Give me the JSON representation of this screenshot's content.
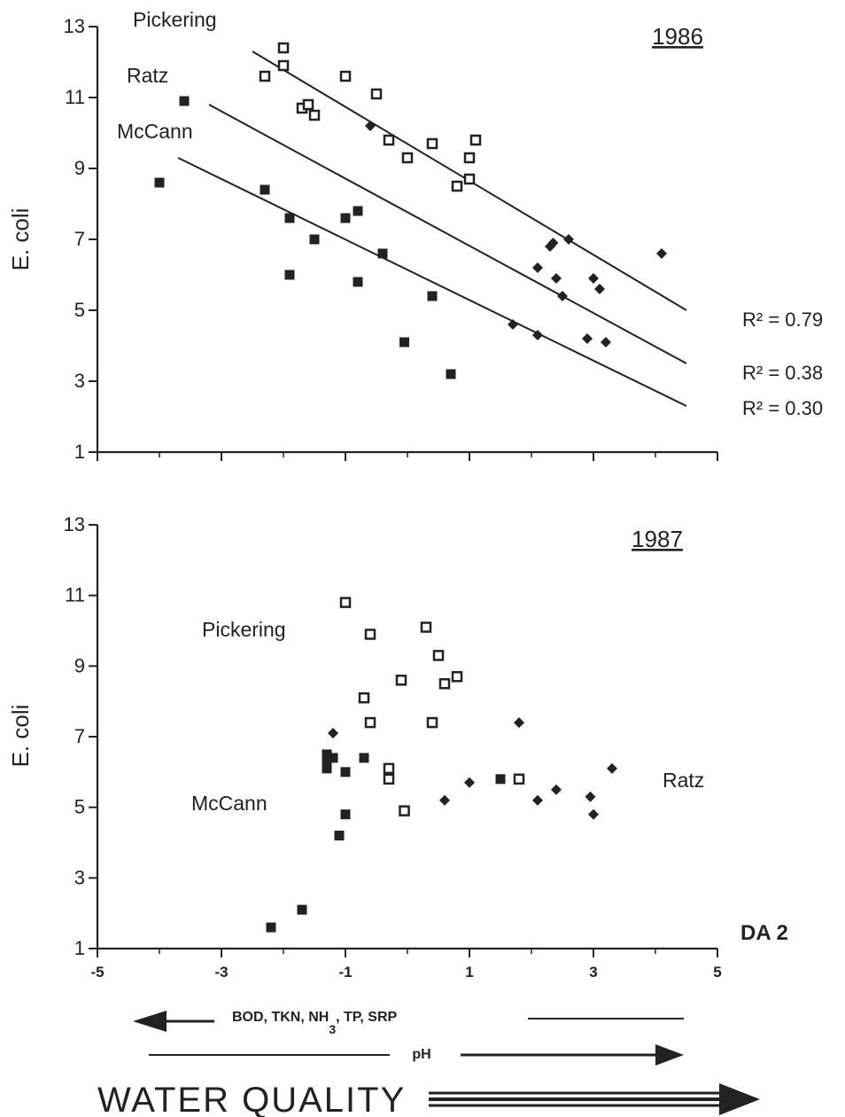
{
  "chart_data": [
    {
      "type": "scatter",
      "year_label": "1986",
      "ylabel": "E. coli",
      "xlim": [
        -5,
        5
      ],
      "ylim": [
        1,
        13
      ],
      "x_ticks": [
        -5,
        -3,
        -1,
        1,
        3,
        5
      ],
      "y_ticks": [
        1,
        3,
        5,
        7,
        9,
        11,
        13
      ],
      "series": [
        {
          "name": "Pickering",
          "marker": "open-square",
          "points": [
            [
              -2.0,
              12.4
            ],
            [
              -2.0,
              11.9
            ],
            [
              -2.3,
              11.6
            ],
            [
              -1.7,
              10.7
            ],
            [
              -1.6,
              10.8
            ],
            [
              -1.5,
              10.5
            ],
            [
              -1.0,
              11.6
            ],
            [
              -0.5,
              11.1
            ],
            [
              -0.3,
              9.8
            ],
            [
              0.0,
              9.3
            ],
            [
              0.4,
              9.7
            ],
            [
              1.0,
              9.3
            ],
            [
              1.0,
              8.7
            ],
            [
              0.8,
              8.5
            ],
            [
              1.1,
              9.8
            ]
          ],
          "fit": {
            "x": [
              -2.5,
              4.5
            ],
            "y": [
              12.3,
              5.0
            ],
            "r2_label": "R² = 0.79"
          }
        },
        {
          "name": "Ratz",
          "marker": "diamond",
          "points": [
            [
              -0.6,
              10.2
            ],
            [
              2.1,
              6.2
            ],
            [
              2.3,
              6.8
            ],
            [
              2.35,
              6.9
            ],
            [
              2.4,
              5.9
            ],
            [
              2.5,
              5.4
            ],
            [
              2.6,
              7.0
            ],
            [
              3.0,
              5.9
            ],
            [
              3.1,
              5.6
            ],
            [
              2.9,
              4.2
            ],
            [
              3.2,
              4.1
            ],
            [
              1.7,
              4.6
            ],
            [
              2.1,
              4.3
            ],
            [
              4.1,
              6.6
            ]
          ],
          "fit": {
            "x": [
              -3.2,
              4.5
            ],
            "y": [
              10.8,
              3.5
            ],
            "r2_label": "R² = 0.38"
          }
        },
        {
          "name": "McCann",
          "marker": "filled-square",
          "points": [
            [
              -4.0,
              8.6
            ],
            [
              -3.6,
              10.9
            ],
            [
              -2.3,
              8.4
            ],
            [
              -1.9,
              7.6
            ],
            [
              -1.9,
              6.0
            ],
            [
              -1.5,
              7.0
            ],
            [
              -1.0,
              7.6
            ],
            [
              -0.8,
              7.8
            ],
            [
              -0.8,
              5.8
            ],
            [
              -0.4,
              6.6
            ],
            [
              -0.05,
              4.1
            ],
            [
              0.4,
              5.4
            ],
            [
              0.7,
              3.2
            ]
          ],
          "fit": {
            "x": [
              -3.7,
              4.5
            ],
            "y": [
              9.3,
              2.3
            ],
            "r2_label": "R² = 0.30"
          }
        }
      ]
    },
    {
      "type": "scatter",
      "year_label": "1987",
      "ylabel": "E. coli",
      "xlabel": "DA 2",
      "xlim": [
        -5,
        5
      ],
      "ylim": [
        1,
        13
      ],
      "x_ticks": [
        -5,
        -3,
        -1,
        1,
        3,
        5
      ],
      "y_ticks": [
        1,
        3,
        5,
        7,
        9,
        11,
        13
      ],
      "series": [
        {
          "name": "Pickering",
          "marker": "open-square",
          "points": [
            [
              -1.0,
              10.8
            ],
            [
              -0.6,
              9.9
            ],
            [
              0.3,
              10.1
            ],
            [
              0.5,
              9.3
            ],
            [
              0.6,
              8.5
            ],
            [
              0.8,
              8.7
            ],
            [
              -0.1,
              8.6
            ],
            [
              -0.7,
              8.1
            ],
            [
              -0.6,
              7.4
            ],
            [
              0.4,
              7.4
            ],
            [
              -0.3,
              6.1
            ],
            [
              -0.3,
              5.8
            ],
            [
              -0.05,
              4.9
            ],
            [
              1.8,
              5.8
            ]
          ]
        },
        {
          "name": "Ratz",
          "marker": "diamond",
          "points": [
            [
              -1.2,
              7.1
            ],
            [
              1.8,
              7.4
            ],
            [
              0.6,
              5.2
            ],
            [
              1.0,
              5.7
            ],
            [
              2.1,
              5.2
            ],
            [
              2.4,
              5.5
            ],
            [
              2.95,
              5.3
            ],
            [
              3.0,
              4.8
            ],
            [
              3.3,
              6.1
            ]
          ]
        },
        {
          "name": "McCann",
          "marker": "filled-square",
          "points": [
            [
              -1.3,
              6.5
            ],
            [
              -1.3,
              6.3
            ],
            [
              -1.3,
              6.1
            ],
            [
              -1.2,
              6.4
            ],
            [
              -1.0,
              6.0
            ],
            [
              -0.7,
              6.4
            ],
            [
              -1.0,
              4.8
            ],
            [
              -1.1,
              4.2
            ],
            [
              -1.7,
              2.1
            ],
            [
              -2.2,
              1.6
            ],
            [
              1.5,
              5.8
            ]
          ]
        }
      ]
    }
  ],
  "labels": {
    "top": {
      "pickering": "Pickering",
      "ratz": "Ratz",
      "mccann": "McCann",
      "year": "1986"
    },
    "bottom": {
      "pickering": "Pickering",
      "ratz": "Ratz",
      "mccann": "McCann",
      "year": "1987",
      "da2": "DA 2"
    }
  },
  "arrows": {
    "left_factors_main": "BOD, TKN, NH",
    "left_factors_sub": "3",
    "left_factors_rest": ", TP, SRP",
    "right_factor": "pH",
    "water_quality": "WATER QUALITY"
  }
}
